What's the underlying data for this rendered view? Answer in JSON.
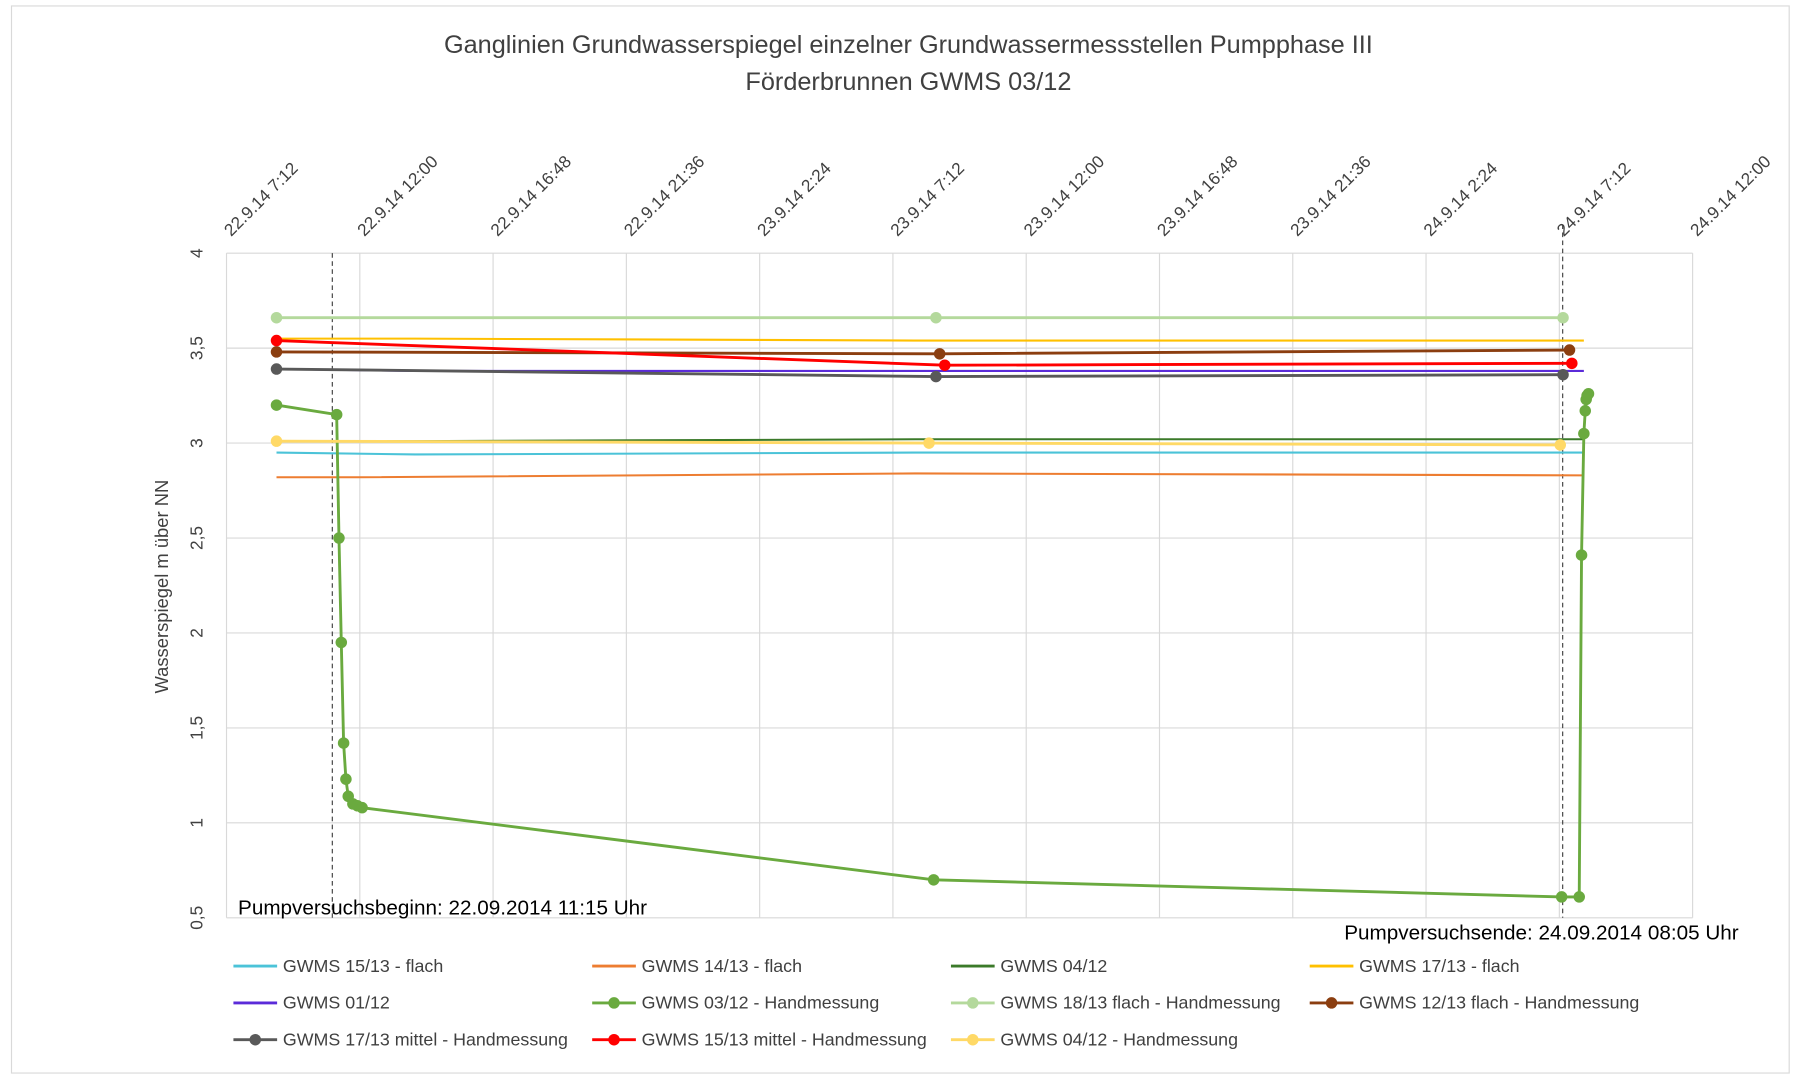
{
  "chart_data": {
    "type": "line",
    "title": "Ganglinien Grundwasserspiegel einzelner Grundwassermessstellen Pumpphase III",
    "subtitle": "Förderbrunnen GWMS 03/12",
    "y_label": "Wasserspiegel m über NN",
    "annotations": [
      "Pumpversuchsbeginn: 22.09.2014 11:15 Uhr",
      "Pumpversuchsende: 24.09.2014 08:05 Uhr"
    ],
    "xlim": [
      "22.9.14 7:12",
      "24.9.14 12:00"
    ],
    "xticks": [
      "22.9.14 7:12",
      "22.9.14 12:00",
      "22.9.14 16:48",
      "22.9.14 21:36",
      "23.9.14 2:24",
      "23.9.14 7:12",
      "23.9.14 12:00",
      "23.9.14 16:48",
      "23.9.14 21:36",
      "24.9.14 2:24",
      "24.9.14 7:12",
      "24.9.14 12:00"
    ],
    "ylim": [
      {
        "value": 0.5,
        "label": "0,5"
      },
      4
    ],
    "yticks": [
      {
        "value": 0.5,
        "label": "0,5"
      },
      1,
      {
        "value": 1.5,
        "label": "1,5"
      },
      2,
      {
        "value": 2.5,
        "label": "2,5"
      },
      3,
      {
        "value": 3.5,
        "label": "3,5"
      },
      4
    ],
    "grid": true,
    "series": [
      {
        "name": "GWMS 15/13 - flach",
        "color": "#4bc3d8",
        "markers": false,
        "x": [
          "22.9.14 9:00",
          "22.9.14 14:00",
          "23.9.14 8:00",
          "24.9.14 8:05"
        ],
        "values": [
          2.95,
          2.94,
          2.95,
          2.95
        ]
      },
      {
        "name": "GWMS 14/13 - flach",
        "color": "#ed7d31",
        "markers": false,
        "x": [
          "22.9.14 9:00",
          "22.9.14 12:00",
          "23.9.14 8:00",
          "24.9.14 8:05"
        ],
        "values": [
          2.82,
          2.82,
          2.84,
          2.83
        ]
      },
      {
        "name": "GWMS 04/12",
        "color": "#3b7a2a",
        "markers": false,
        "x": [
          "22.9.14 9:00",
          "22.9.14 14:00",
          "23.9.14 8:00",
          "24.9.14 8:05"
        ],
        "values": [
          3.01,
          3.01,
          3.02,
          3.02
        ]
      },
      {
        "name": "GWMS 17/13 - flach",
        "color": "#ffc000",
        "markers": false,
        "x": [
          "22.9.14 9:00",
          "22.9.14 14:00",
          "23.9.14 8:00",
          "24.9.14 8:05"
        ],
        "values": [
          3.55,
          3.55,
          3.54,
          3.54
        ]
      },
      {
        "name": "GWMS 01/12",
        "color": "#5b2bd9",
        "markers": false,
        "x": [
          "22.9.14 9:00",
          "22.9.14 14:00",
          "23.9.14 8:00",
          "24.9.14 8:05"
        ],
        "values": [
          3.39,
          3.38,
          3.38,
          3.38
        ]
      },
      {
        "name": "GWMS 03/12 - Handmessung",
        "color": "#6aaa3f",
        "markers": true,
        "x": [
          "22.9.14 9:00",
          "22.9.14 11:10",
          "22.9.14 11:15",
          "22.9.14 11:20",
          "22.9.14 11:25",
          "22.9.14 11:30",
          "22.9.14 11:35",
          "22.9.14 11:45",
          "22.9.14 11:55",
          "22.9.14 12:05",
          "23.9.14 8:40",
          "24.9.14 7:17",
          "24.9.14 7:55",
          "24.9.14 8:00",
          "24.9.14 8:05",
          "24.9.14 8:08",
          "24.9.14 8:10",
          "24.9.14 8:12",
          "24.9.14 8:15"
        ],
        "values": [
          3.2,
          3.15,
          2.5,
          1.95,
          1.42,
          1.23,
          1.14,
          1.1,
          1.09,
          1.08,
          0.7,
          0.61,
          0.61,
          2.41,
          3.05,
          3.17,
          3.23,
          3.25,
          3.26
        ]
      },
      {
        "name": "GWMS 18/13 flach - Handmessung",
        "color": "#b4d99c",
        "markers": true,
        "x": [
          "22.9.14 9:00",
          "23.9.14 8:45",
          "24.9.14 7:20"
        ],
        "values": [
          3.66,
          3.66,
          3.66
        ]
      },
      {
        "name": "GWMS 12/13 flach - Handmessung",
        "color": "#8b3e10",
        "markers": true,
        "x": [
          "22.9.14 9:00",
          "23.9.14 8:53",
          "24.9.14 7:34"
        ],
        "values": [
          3.48,
          3.47,
          3.49
        ]
      },
      {
        "name": "GWMS 17/13 mittel - Handmessung",
        "color": "#595959",
        "markers": true,
        "x": [
          "22.9.14 9:00",
          "23.9.14 8:45",
          "24.9.14 7:20"
        ],
        "values": [
          3.39,
          3.35,
          3.36
        ]
      },
      {
        "name": "GWMS 15/13 mittel - Handmessung",
        "color": "#ff0000",
        "markers": true,
        "x": [
          "22.9.14 9:00",
          "23.9.14 9:04",
          "24.9.14 7:39"
        ],
        "values": [
          3.54,
          3.41,
          3.42
        ]
      },
      {
        "name": "GWMS 04/12 - Handmessung",
        "color": "#ffd966",
        "markers": true,
        "x": [
          "22.9.14 9:00",
          "23.9.14 8:30",
          "24.9.14 7:14"
        ],
        "values": [
          3.01,
          3.0,
          2.99
        ]
      }
    ]
  }
}
